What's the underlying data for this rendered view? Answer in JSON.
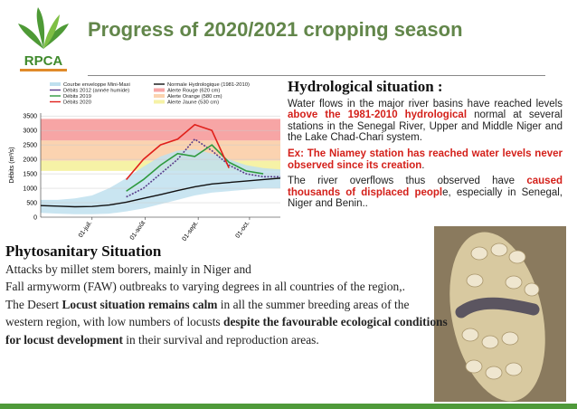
{
  "logo": {
    "text": "RPCA"
  },
  "header": {
    "title": "Progress of 2020/2021 cropping season"
  },
  "chart_data": {
    "type": "line",
    "y_label": "Débits (m³/s)",
    "xlim": [
      0,
      140
    ],
    "xticks": [
      {
        "value": 30,
        "label": "01-juil."
      },
      {
        "value": 61,
        "label": "01-août"
      },
      {
        "value": 92,
        "label": "01-sept."
      },
      {
        "value": 122,
        "label": "01-oct."
      }
    ],
    "ylim": [
      0,
      3600
    ],
    "yticks": [
      0,
      500,
      1000,
      1500,
      2000,
      2500,
      3000,
      3500
    ],
    "grid": true,
    "x": [
      0,
      10,
      20,
      30,
      40,
      50,
      60,
      70,
      80,
      90,
      100,
      110,
      120,
      130,
      140
    ],
    "bands": [
      {
        "name": "Alerte Rouge (620 cm)",
        "color": "#f7a5a5",
        "range": [
          2650,
          3400
        ]
      },
      {
        "name": "Alerte Orange (580 cm)",
        "color": "#fbd3b0",
        "range": [
          1950,
          2650
        ]
      },
      {
        "name": "Alerte Jaune (530 cm)",
        "color": "#f6f2a6",
        "range": [
          1600,
          1950
        ]
      }
    ],
    "envelope": {
      "name": "Courbe enveloppe Mini-Maxi",
      "color": "#bfe0ef",
      "max": [
        600,
        600,
        650,
        750,
        1000,
        1350,
        1750,
        2100,
        2300,
        2350,
        2200,
        2000,
        1800,
        1700,
        1650
      ],
      "min": [
        150,
        120,
        100,
        100,
        120,
        200,
        300,
        450,
        600,
        750,
        850,
        900,
        950,
        1000,
        1000
      ]
    },
    "series": [
      {
        "name": "Débits 2012 (année humide)",
        "color": "#5a3d8a",
        "values": [
          null,
          null,
          null,
          null,
          null,
          700,
          1000,
          1500,
          2000,
          2700,
          2300,
          1800,
          1500,
          1400,
          1400
        ]
      },
      {
        "name": "Débits 2019",
        "color": "#2e9a3e",
        "values": [
          null,
          null,
          null,
          null,
          null,
          900,
          1300,
          1800,
          2200,
          2100,
          2500,
          1900,
          1600,
          1500,
          null
        ]
      },
      {
        "name": "Débits 2020",
        "color": "#e0201b",
        "values": [
          null,
          null,
          null,
          null,
          null,
          1300,
          2000,
          2500,
          2700,
          3200,
          3000,
          1700,
          null,
          null,
          null
        ]
      },
      {
        "name": "Normale Hydrologique (1981-2010)",
        "color": "#111111",
        "values": [
          400,
          380,
          360,
          370,
          420,
          520,
          650,
          780,
          920,
          1050,
          1150,
          1200,
          1250,
          1300,
          1350
        ]
      }
    ]
  },
  "hydro": {
    "heading": "Hydrological situation :",
    "paragraphs": [
      [
        "Water flows in the major river basins have reached levels ",
        "above the 1981-2010 hydrological",
        " normal at several stations in the Senegal River, Upper and Middle Niger and the Lake Chad-Chari system."
      ],
      [
        "Ex: The Niamey station has reached water levels never observed since its creation",
        "."
      ],
      [
        "The river overflows thus observed have ",
        "caused thousands of displaced peopl",
        "e, especially in Senegal, Niger and Benin.."
      ]
    ]
  },
  "phyto": {
    "heading": "Phytosanitary Situation",
    "paragraphs": [
      [
        "Attacks by millet stem borers, mainly in Niger and"
      ],
      [
        "Fall armyworm (FAW) outbreaks to varying degrees in all countries of the region,."
      ],
      [
        "The Desert ",
        "Locust situation remains calm",
        " in all the summer breeding areas of the western region, with low numbers of locusts ",
        "despite the favourable ecological conditions for locust development",
        " in their survival and reproduction areas."
      ]
    ]
  }
}
